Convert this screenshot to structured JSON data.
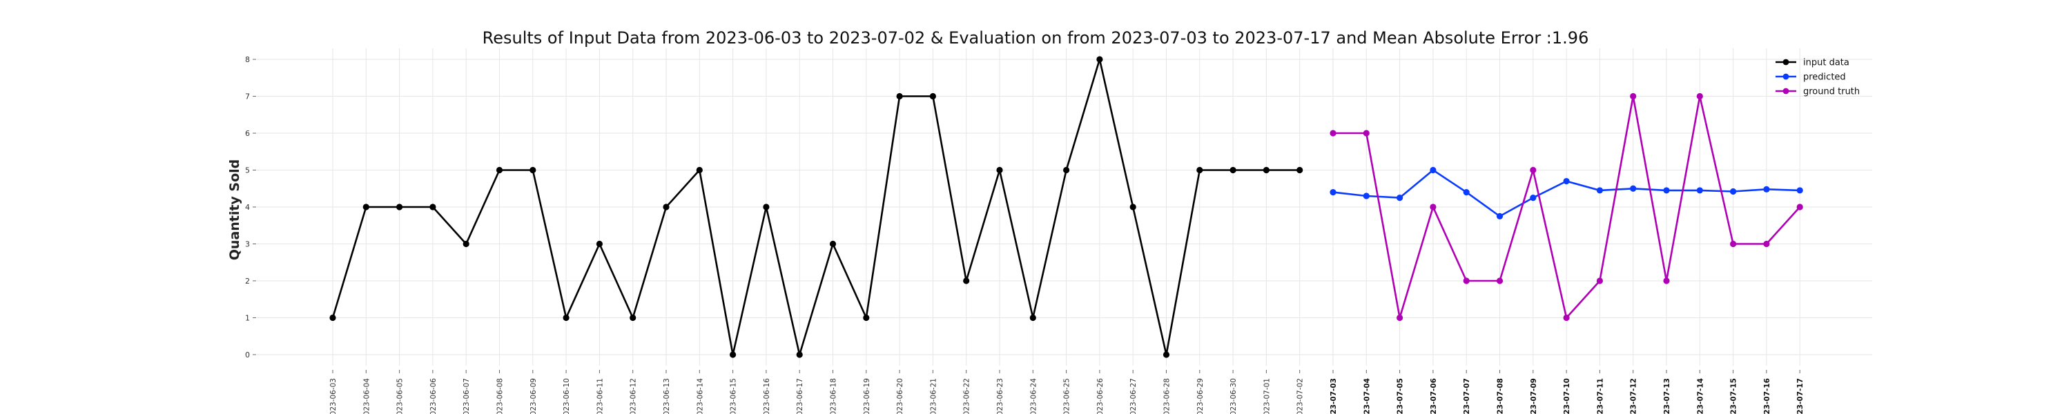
{
  "chart_data": {
    "type": "line",
    "title": "Results of Input Data from 2023-06-03 to 2023-07-02 & Evaluation on from 2023-07-03 to 2023-07-17 and Mean Absolute Error  :1.96",
    "xlabel": "",
    "ylabel": "Quantity Sold",
    "ylim": [
      -0.3,
      8.3
    ],
    "yticks": [
      0,
      1,
      2,
      3,
      4,
      5,
      6,
      7,
      8
    ],
    "grid": true,
    "legend_position": "top-right",
    "x": [
      "2023-06-03",
      "2023-06-04",
      "2023-06-05",
      "2023-06-06",
      "2023-06-07",
      "2023-06-08",
      "2023-06-09",
      "2023-06-10",
      "2023-06-11",
      "2023-06-12",
      "2023-06-13",
      "2023-06-14",
      "2023-06-15",
      "2023-06-16",
      "2023-06-17",
      "2023-06-18",
      "2023-06-19",
      "2023-06-20",
      "2023-06-21",
      "2023-06-22",
      "2023-06-23",
      "2023-06-24",
      "2023-06-25",
      "2023-06-26",
      "2023-06-27",
      "2023-06-28",
      "2023-06-29",
      "2023-06-30",
      "2023-07-01",
      "2023-07-02",
      "2023-07-03",
      "2023-07-04",
      "2023-07-05",
      "2023-07-06",
      "2023-07-07",
      "2023-07-08",
      "2023-07-09",
      "2023-07-10",
      "2023-07-11",
      "2023-07-12",
      "2023-07-13",
      "2023-07-14",
      "2023-07-15",
      "2023-07-16",
      "2023-07-17"
    ],
    "series": [
      {
        "name": "input data",
        "color": "#000000",
        "x": [
          "2023-06-03",
          "2023-06-04",
          "2023-06-05",
          "2023-06-06",
          "2023-06-07",
          "2023-06-08",
          "2023-06-09",
          "2023-06-10",
          "2023-06-11",
          "2023-06-12",
          "2023-06-13",
          "2023-06-14",
          "2023-06-15",
          "2023-06-16",
          "2023-06-17",
          "2023-06-18",
          "2023-06-19",
          "2023-06-20",
          "2023-06-21",
          "2023-06-22",
          "2023-06-23",
          "2023-06-24",
          "2023-06-25",
          "2023-06-26",
          "2023-06-27",
          "2023-06-28",
          "2023-06-29",
          "2023-06-30",
          "2023-07-01",
          "2023-07-02"
        ],
        "values": [
          1,
          4,
          4,
          4,
          3,
          5,
          5,
          1,
          3,
          1,
          4,
          5,
          0,
          4,
          0,
          3,
          1,
          7,
          7,
          2,
          5,
          1,
          5,
          8,
          4,
          0,
          5,
          5,
          5,
          5
        ]
      },
      {
        "name": "predicted",
        "color": "#0a3cff",
        "x": [
          "2023-07-03",
          "2023-07-04",
          "2023-07-05",
          "2023-07-06",
          "2023-07-07",
          "2023-07-08",
          "2023-07-09",
          "2023-07-10",
          "2023-07-11",
          "2023-07-12",
          "2023-07-13",
          "2023-07-14",
          "2023-07-15",
          "2023-07-16",
          "2023-07-17"
        ],
        "values": [
          4.4,
          4.3,
          4.25,
          5.0,
          4.4,
          3.75,
          4.25,
          4.7,
          4.45,
          4.5,
          4.45,
          4.45,
          4.42,
          4.48,
          4.45
        ]
      },
      {
        "name": "ground truth",
        "color": "#b000b5",
        "x": [
          "2023-07-03",
          "2023-07-04",
          "2023-07-05",
          "2023-07-06",
          "2023-07-07",
          "2023-07-08",
          "2023-07-09",
          "2023-07-10",
          "2023-07-11",
          "2023-07-12",
          "2023-07-13",
          "2023-07-14",
          "2023-07-15",
          "2023-07-16",
          "2023-07-17"
        ],
        "values": [
          6,
          6,
          1,
          4,
          2,
          2,
          5,
          1,
          2,
          7,
          2,
          7,
          3,
          3,
          4
        ]
      }
    ]
  }
}
